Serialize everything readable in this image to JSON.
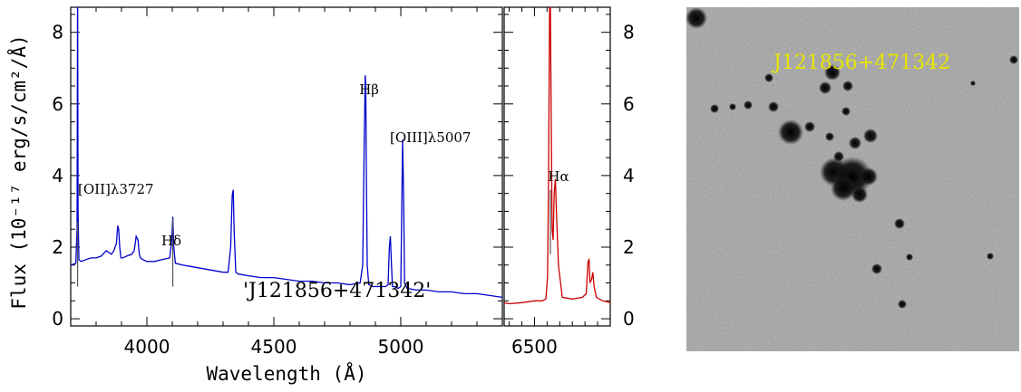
{
  "chart_data": [
    {
      "type": "line",
      "panel": "blue-spectrum",
      "xlabel": "Wavelength (Å)",
      "ylabel": "Flux (10⁻¹⁷ erg/s/cm²/Å)",
      "xlim": [
        3700,
        5400
      ],
      "ylim": [
        -0.2,
        8.7
      ],
      "xticks": [
        4000,
        4500,
        5000
      ],
      "yticks": [
        0,
        2,
        4,
        6,
        8
      ],
      "object_label": "'J121856+471342'",
      "line_color": "#0000cc",
      "series": [
        {
          "x": [
            3700,
            3720,
            3725,
            3727,
            3729,
            3732,
            3740,
            3760,
            3780,
            3800,
            3820,
            3840,
            3860,
            3870,
            3880,
            3885,
            3889,
            3893,
            3898,
            3905,
            3920,
            3940,
            3950,
            3958,
            3965,
            3970,
            3975,
            3985,
            4000,
            4030,
            4060,
            4090,
            4098,
            4102,
            4106,
            4112,
            4140,
            4180,
            4220,
            4260,
            4300,
            4320,
            4330,
            4336,
            4340,
            4344,
            4350,
            4360,
            4400,
            4450,
            4500,
            4550,
            4600,
            4650,
            4700,
            4750,
            4800,
            4840,
            4850,
            4856,
            4860,
            4862,
            4864,
            4868,
            4874,
            4890,
            4920,
            4940,
            4950,
            4955,
            4959,
            4963,
            4967,
            4975,
            4990,
            5000,
            5003,
            5007,
            5011,
            5015,
            5025,
            5060,
            5100,
            5150,
            5200,
            5250,
            5300,
            5350,
            5400
          ],
          "y": [
            1.5,
            1.55,
            2.5,
            9.5,
            3.0,
            1.65,
            1.6,
            1.65,
            1.7,
            1.7,
            1.75,
            1.9,
            1.8,
            1.9,
            2.1,
            2.6,
            2.5,
            2.0,
            1.7,
            1.7,
            1.75,
            1.8,
            1.9,
            2.3,
            2.2,
            1.8,
            1.7,
            1.65,
            1.6,
            1.6,
            1.65,
            1.7,
            2.2,
            2.85,
            2.0,
            1.55,
            1.5,
            1.45,
            1.4,
            1.35,
            1.3,
            1.3,
            2.0,
            3.45,
            3.6,
            2.4,
            1.3,
            1.25,
            1.2,
            1.15,
            1.15,
            1.1,
            1.05,
            1.05,
            1.0,
            1.0,
            0.95,
            1.0,
            1.5,
            5.0,
            6.8,
            6.5,
            4.5,
            1.5,
            0.95,
            0.9,
            0.9,
            0.9,
            0.95,
            2.0,
            2.3,
            1.6,
            0.9,
            0.9,
            0.85,
            0.9,
            2.5,
            5.0,
            3.5,
            1.0,
            0.85,
            0.8,
            0.8,
            0.75,
            0.75,
            0.7,
            0.7,
            0.65,
            0.6
          ]
        }
      ],
      "emission_lines": [
        {
          "label": "[OII]λ3727",
          "x": 3727,
          "tick_y": [
            0.9,
            2.7
          ]
        },
        {
          "label": "Hδ",
          "x": 4102,
          "tick_y": [
            0.9,
            2.8
          ]
        },
        {
          "label": "Hβ",
          "x": 4861
        },
        {
          "label": "[OIII]λ5007",
          "x": 5007
        }
      ]
    },
    {
      "type": "line",
      "panel": "red-spectrum",
      "xlim": [
        6380,
        6800
      ],
      "ylim": [
        -0.2,
        8.7
      ],
      "xticks": [
        6500
      ],
      "yticks": [
        0,
        2,
        4,
        6,
        8
      ],
      "line_color": "#cc0000",
      "series": [
        {
          "x": [
            6380,
            6400,
            6450,
            6500,
            6530,
            6545,
            6552,
            6556,
            6560,
            6563,
            6566,
            6570,
            6574,
            6578,
            6583,
            6588,
            6595,
            6610,
            6650,
            6690,
            6705,
            6712,
            6716,
            6720,
            6726,
            6731,
            6736,
            6745,
            6770,
            6800
          ],
          "y": [
            0.45,
            0.42,
            0.45,
            0.5,
            0.5,
            0.55,
            1.2,
            4.0,
            8.7,
            8.7,
            6.0,
            2.5,
            2.2,
            3.5,
            3.9,
            2.8,
            1.5,
            0.6,
            0.55,
            0.6,
            0.7,
            1.6,
            1.65,
            1.0,
            1.1,
            1.3,
            0.9,
            0.6,
            0.5,
            0.45
          ]
        }
      ],
      "emission_lines": [
        {
          "label": "Hα",
          "x": 6563,
          "tick_y": [
            1.8,
            3.6
          ]
        }
      ]
    }
  ],
  "image_panel": {
    "label": "J121856+471342",
    "label_color": "#e6e600"
  }
}
